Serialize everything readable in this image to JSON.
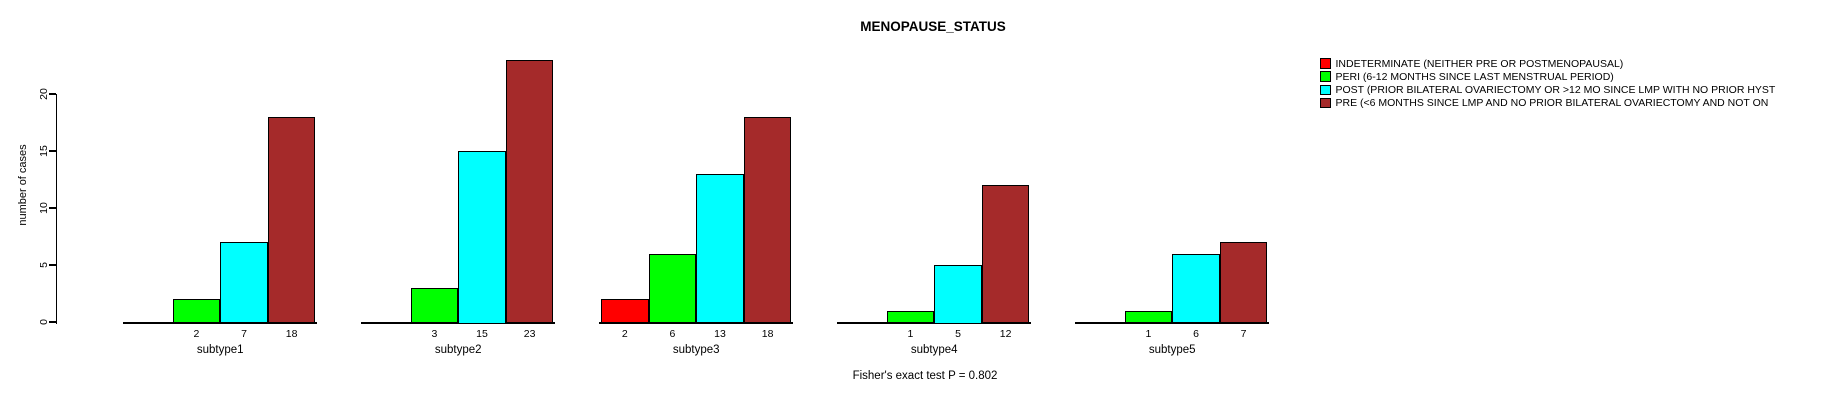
{
  "title": "MENOPAUSE_STATUS",
  "ylabel": "number of cases",
  "footnote": "Fisher's exact test P = 0.802",
  "chart_data": {
    "type": "bar",
    "title": "MENOPAUSE_STATUS",
    "xlabel": "",
    "ylabel": "number of cases",
    "ylim": [
      0,
      23
    ],
    "yticks": [
      0,
      5,
      10,
      15,
      20
    ],
    "grid": false,
    "legend_position": "right",
    "categories": [
      "subtype1",
      "subtype2",
      "subtype3",
      "subtype4",
      "subtype5"
    ],
    "series": [
      {
        "name": "INDETERMINATE (NEITHER PRE OR POSTMENOPAUSAL)",
        "color": "#FF0000",
        "values": [
          0,
          0,
          2,
          0,
          0
        ]
      },
      {
        "name": "PERI (6-12 MONTHS SINCE LAST MENSTRUAL PERIOD)",
        "color": "#00FF00",
        "values": [
          2,
          3,
          6,
          1,
          1
        ]
      },
      {
        "name": "POST (PRIOR BILATERAL OVARIECTOMY OR >12 MO SINCE LMP WITH NO PRIOR HYST",
        "color": "#00FFFF",
        "values": [
          7,
          15,
          13,
          5,
          6
        ]
      },
      {
        "name": "PRE (<6 MONTHS SINCE LMP AND NO PRIOR BILATERAL OVARIECTOMY AND NOT ON",
        "color": "#A52A2A",
        "values": [
          18,
          23,
          18,
          12,
          7
        ]
      }
    ],
    "bar_value_labels": "shown under each nonzero bar",
    "annotation": "Fisher's exact test P = 0.802"
  }
}
